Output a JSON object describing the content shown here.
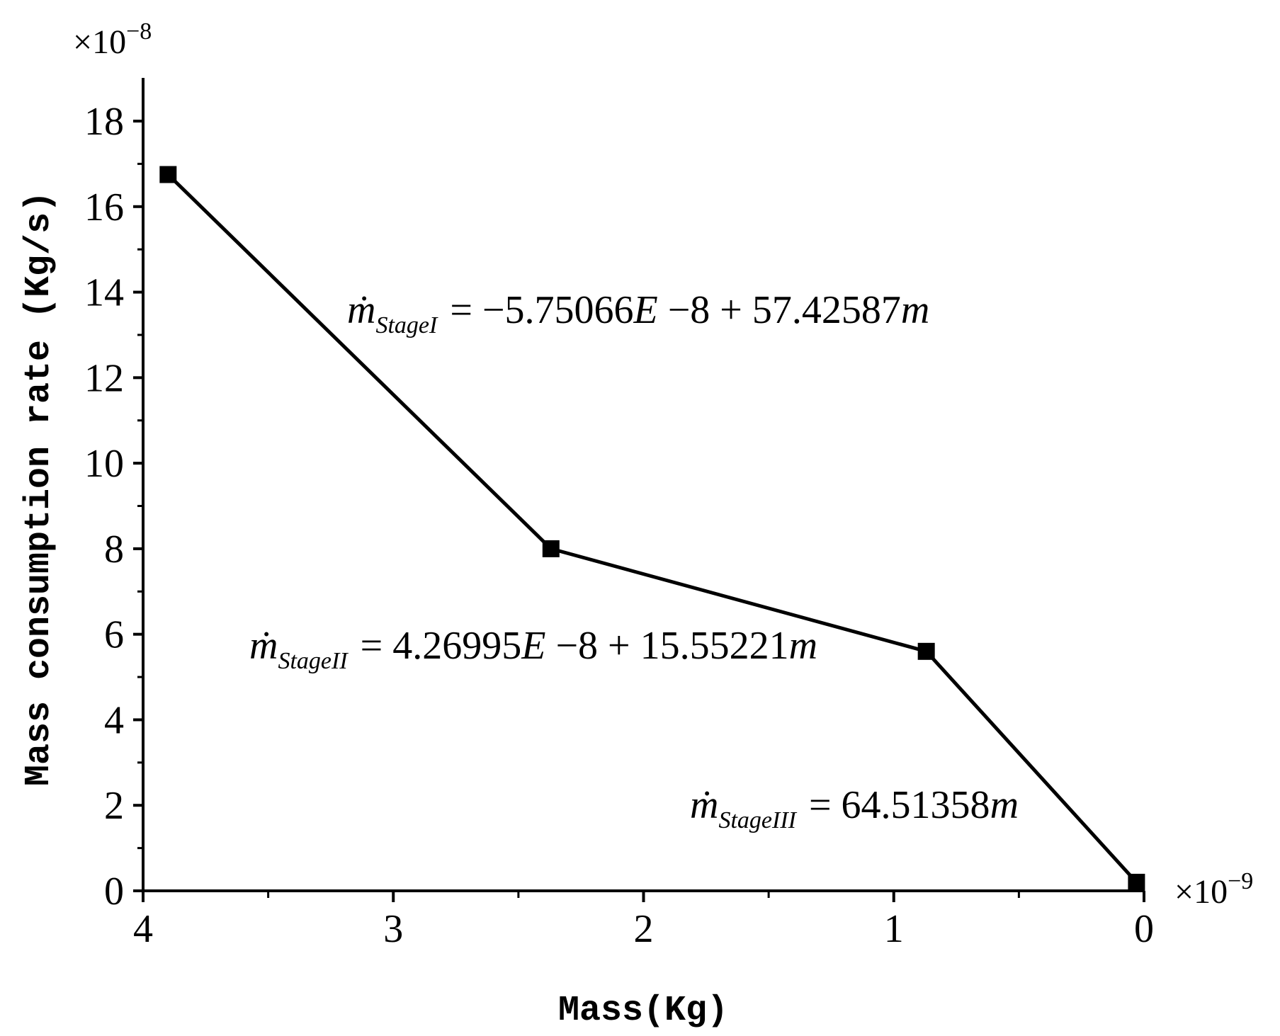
{
  "chart_data": {
    "type": "line",
    "title": "",
    "xlabel": "Mass(Kg)",
    "ylabel": "Mass consumption rate (Kg/s)",
    "x_multiplier": "×10",
    "x_exponent": "−9",
    "y_multiplier": "×10",
    "y_exponent": "−8",
    "xlim": [
      4,
      0
    ],
    "ylim": [
      0,
      19
    ],
    "x_ticks": [
      4,
      3,
      2,
      1,
      0
    ],
    "y_ticks": [
      0,
      2,
      4,
      6,
      8,
      10,
      12,
      14,
      16,
      18
    ],
    "x_tick_labels": [
      "4",
      "3",
      "2",
      "1",
      "0"
    ],
    "y_tick_labels": [
      "0",
      "2",
      "4",
      "6",
      "8",
      "10",
      "12",
      "14",
      "16",
      "18"
    ],
    "series": [
      {
        "x": [
          3.9,
          2.37,
          0.87,
          0.03
        ],
        "y": [
          16.75,
          8.0,
          5.6,
          0.2
        ],
        "marker": "square",
        "color": "#000000"
      }
    ],
    "annotations": [
      {
        "symbol": "ṁ",
        "subscript": "StageI",
        "expression": "= −5.75066",
        "e": "E",
        "tail": " −8 + 57.42587",
        "var": "m"
      },
      {
        "symbol": "ṁ",
        "subscript": "StageII",
        "expression": "= 4.26995",
        "e": "E",
        "tail": " −8 + 15.55221",
        "var": "m"
      },
      {
        "symbol": "ṁ",
        "subscript": "StageIII",
        "expression": "= 64.51358",
        "e": "",
        "tail": "",
        "var": "m"
      }
    ],
    "grid": false,
    "legend": "none"
  }
}
